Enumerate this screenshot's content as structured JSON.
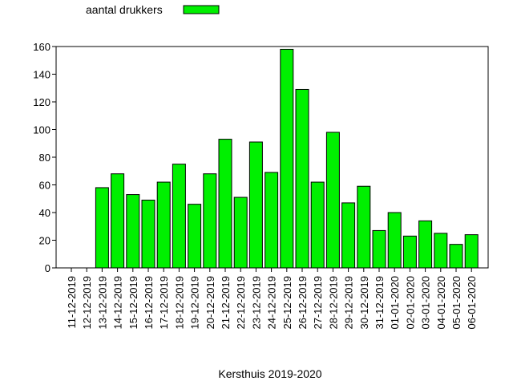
{
  "legend": {
    "label": "aantal drukkers"
  },
  "colors": {
    "bar_fill": "#00f000",
    "bar_stroke": "#000000",
    "axis": "#000000",
    "background": "#ffffff"
  },
  "chart_data": {
    "type": "bar",
    "title": "",
    "xlabel": "Kersthuis 2019-2020",
    "ylabel": "",
    "ylim": [
      0,
      160
    ],
    "yticks": [
      0,
      20,
      40,
      60,
      80,
      100,
      120,
      140,
      160
    ],
    "grid": false,
    "legend_position": "top-left",
    "categories": [
      "11-12-2019",
      "12-12-2019",
      "13-12-2019",
      "14-12-2019",
      "15-12-2019",
      "16-12-2019",
      "17-12-2019",
      "18-12-2019",
      "19-12-2019",
      "20-12-2019",
      "21-12-2019",
      "22-12-2019",
      "23-12-2019",
      "24-12-2019",
      "25-12-2019",
      "26-12-2019",
      "27-12-2019",
      "28-12-2019",
      "29-12-2019",
      "30-12-2019",
      "31-12-2019",
      "01-01-2020",
      "02-01-2020",
      "03-01-2020",
      "04-01-2020",
      "05-01-2020",
      "06-01-2020"
    ],
    "series": [
      {
        "name": "aantal drukkers",
        "values": [
          0,
          0,
          58,
          68,
          53,
          49,
          62,
          75,
          46,
          68,
          93,
          51,
          91,
          69,
          158,
          129,
          62,
          98,
          47,
          59,
          27,
          40,
          23,
          34,
          25,
          17,
          24
        ]
      }
    ]
  }
}
